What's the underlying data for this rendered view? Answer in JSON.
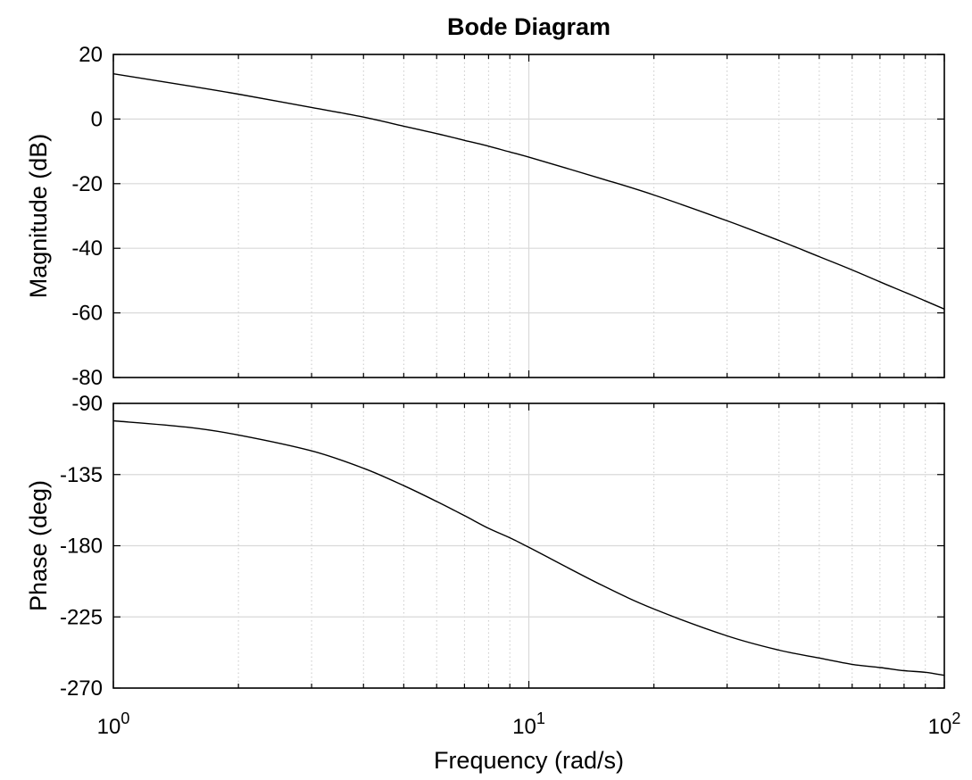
{
  "chart_data": {
    "type": "line",
    "title": "Bode Diagram",
    "xlabel": "Frequency  (rad/s)",
    "xscale": "log",
    "xlim": [
      1,
      100
    ],
    "xticks": [
      {
        "value": 1,
        "base": "10",
        "exp": "0"
      },
      {
        "value": 10,
        "base": "10",
        "exp": "1"
      },
      {
        "value": 100,
        "base": "10",
        "exp": "2"
      }
    ],
    "grid": true,
    "panels": [
      {
        "name": "magnitude",
        "ylabel": "Magnitude (dB)",
        "ylim": [
          -80,
          20
        ],
        "yticks": [
          20,
          0,
          -20,
          -40,
          -60,
          -80
        ],
        "ytick_labels": [
          "20",
          "0",
          "-20",
          "-40",
          "-60",
          "-80"
        ],
        "series": [
          {
            "x": [
              1,
              1.5,
              2,
              3,
              4,
              5,
              6,
              7,
              8,
              9,
              10,
              15,
              20,
              30,
              40,
              50,
              60,
              70,
              80,
              90,
              100
            ],
            "y": [
              14,
              10.4,
              7.7,
              3.6,
              0.6,
              -2.2,
              -4.5,
              -6.6,
              -8.4,
              -10.2,
              -11.8,
              -18.5,
              -23.5,
              -31.5,
              -37.6,
              -42.6,
              -46.7,
              -50.4,
              -53.5,
              -56.3,
              -58.8
            ]
          }
        ]
      },
      {
        "name": "phase",
        "ylabel": "Phase (deg)",
        "ylim": [
          -270,
          -90
        ],
        "yticks": [
          -90,
          -135,
          -180,
          -225,
          -270
        ],
        "ytick_labels": [
          "-90",
          "-135",
          "-180",
          "-225",
          "-270"
        ],
        "series": [
          {
            "x": [
              1,
              1.5,
              2,
              3,
              4,
              5,
              6,
              7,
              8,
              9,
              10,
              15,
              20,
              30,
              40,
              50,
              60,
              70,
              80,
              90,
              100
            ],
            "y": [
              -101,
              -105,
              -110,
              -120,
              -131,
              -142,
              -152,
              -161,
              -169,
              -175,
              -181,
              -205,
              -220,
              -237,
              -246,
              -251,
              -255,
              -257,
              -259,
              -260,
              -262
            ]
          }
        ]
      }
    ]
  }
}
